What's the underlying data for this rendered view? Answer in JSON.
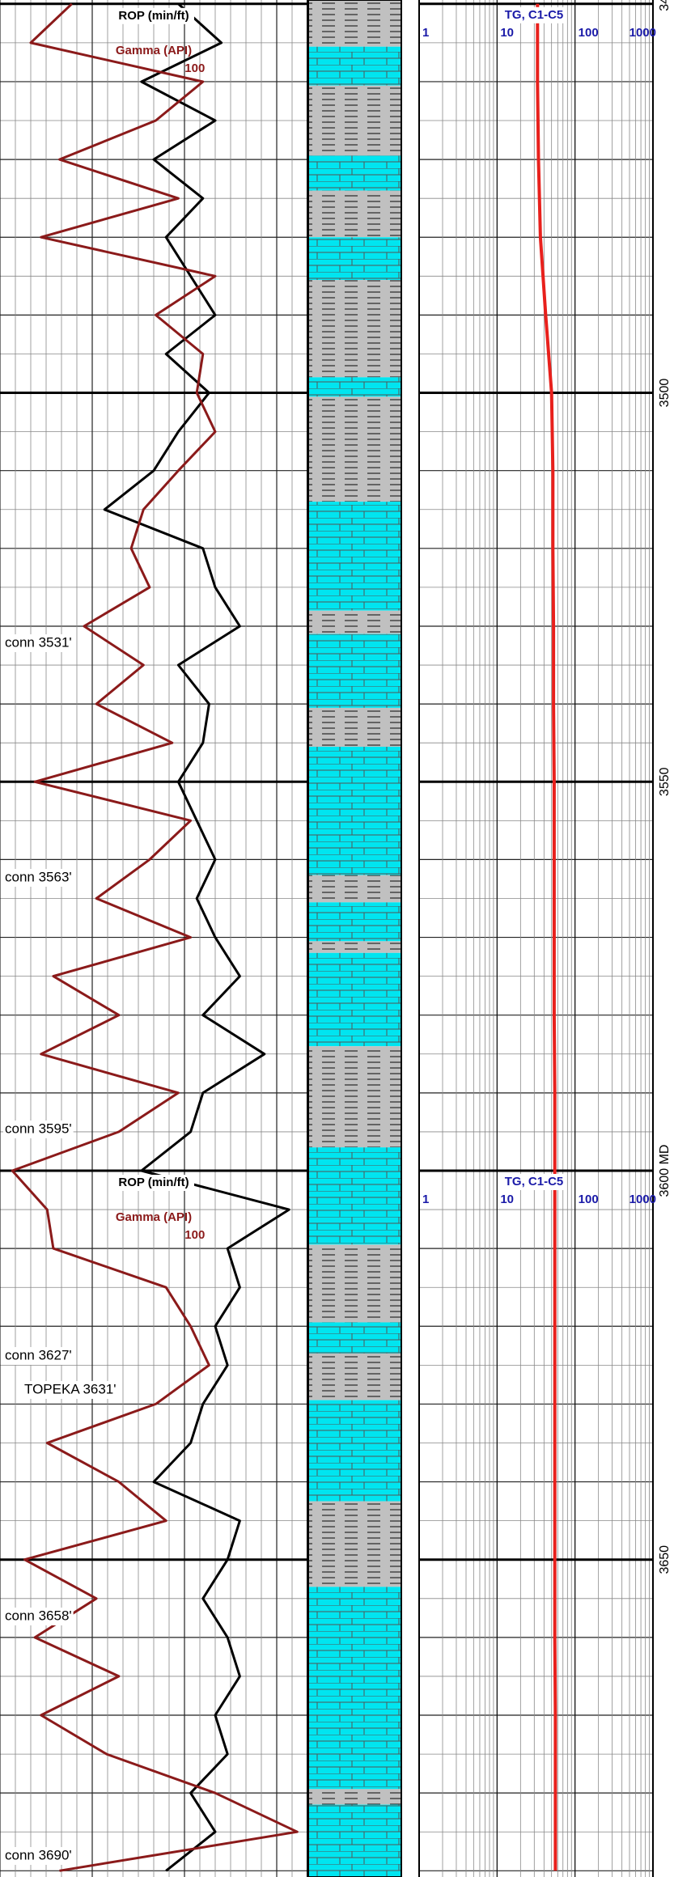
{
  "chart_data": {
    "type": "welllog",
    "ylim": [
      3449.5,
      3690.8
    ],
    "yticks": [
      {
        "value": 3450,
        "label": "34"
      },
      3500,
      3550,
      {
        "value": 3600,
        "label": "3600 MD"
      },
      3650
    ],
    "depths": [
      3450,
      3455,
      3460,
      3465,
      3470,
      3475,
      3480,
      3485,
      3490,
      3495,
      3500,
      3505,
      3510,
      3515,
      3520,
      3525,
      3530,
      3535,
      3540,
      3545,
      3550,
      3555,
      3560,
      3565,
      3570,
      3575,
      3580,
      3585,
      3590,
      3595,
      3600,
      3605,
      3610,
      3615,
      3620,
      3625,
      3630,
      3635,
      3640,
      3645,
      3650,
      3655,
      3660,
      3665,
      3670,
      3675,
      3680,
      3685,
      3690
    ],
    "series": [
      {
        "name": "ROP (min/ft)",
        "color": "#000000",
        "xlim": [
          0,
          5
        ],
        "values": [
          2.9,
          3.6,
          2.3,
          3.5,
          2.5,
          3.3,
          2.7,
          3.1,
          3.5,
          2.7,
          3.4,
          2.9,
          2.5,
          1.7,
          3.3,
          3.5,
          3.9,
          2.9,
          3.4,
          3.3,
          2.9,
          3.2,
          3.5,
          3.2,
          3.5,
          3.9,
          3.3,
          4.3,
          3.3,
          3.1,
          2.3,
          4.7,
          3.7,
          3.9,
          3.5,
          3.7,
          3.3,
          3.1,
          2.5,
          3.9,
          3.7,
          3.3,
          3.7,
          3.9,
          3.5,
          3.7,
          3.1,
          3.5,
          2.7
        ]
      },
      {
        "name": "Gamma (API)",
        "color": "#8b1a1a",
        "xlim": [
          0,
          150
        ],
        "xticks": [
          100
        ],
        "values": [
          35,
          15,
          99,
          76,
          29,
          87,
          20,
          105,
          76,
          99,
          96,
          105,
          87,
          70,
          64,
          73,
          41,
          70,
          47,
          84,
          17,
          93,
          73,
          47,
          93,
          26,
          58,
          20,
          87,
          58,
          6,
          23,
          26,
          81,
          93,
          102,
          76,
          23,
          58,
          81,
          12,
          47,
          17,
          58,
          20,
          52,
          105,
          145,
          29
        ]
      }
    ],
    "gas": {
      "name": "TG, C1-C5",
      "color": "#e8201c",
      "label_color": "#1a1aa8",
      "log": true,
      "xlim": [
        1,
        1000
      ],
      "xticks": [
        1,
        10,
        100,
        1000
      ],
      "depths": [
        3450,
        3460,
        3470,
        3480,
        3490,
        3500,
        3510,
        3520,
        3530,
        3540,
        3550,
        3560,
        3570,
        3580,
        3590,
        3600,
        3610,
        3620,
        3630,
        3640,
        3650,
        3660,
        3670,
        3680,
        3690
      ],
      "values": [
        33,
        33,
        34,
        36,
        42,
        50,
        52,
        52,
        53,
        53,
        54,
        54,
        54,
        54,
        55,
        55,
        55,
        55,
        55,
        55,
        55,
        55,
        56,
        56,
        56
      ]
    },
    "lithology": [
      {
        "top": 3449.5,
        "base": 3455.5,
        "color": "#c0c0c0"
      },
      {
        "top": 3455.5,
        "base": 3460.5,
        "color": "#00e5f0"
      },
      {
        "top": 3460.5,
        "base": 3469.5,
        "color": "#c0c0c0"
      },
      {
        "top": 3469.5,
        "base": 3474,
        "color": "#00e5f0"
      },
      {
        "top": 3474,
        "base": 3480,
        "color": "#c0c0c0"
      },
      {
        "top": 3480,
        "base": 3485.5,
        "color": "#00e5f0"
      },
      {
        "top": 3485.5,
        "base": 3498,
        "color": "#c0c0c0"
      },
      {
        "top": 3498,
        "base": 3500.5,
        "color": "#00e5f0"
      },
      {
        "top": 3500.5,
        "base": 3514,
        "color": "#c0c0c0"
      },
      {
        "top": 3514,
        "base": 3528,
        "color": "#00e5f0"
      },
      {
        "top": 3528,
        "base": 3531,
        "color": "#c0c0c0"
      },
      {
        "top": 3531,
        "base": 3540.5,
        "color": "#00e5f0"
      },
      {
        "top": 3540.5,
        "base": 3545.5,
        "color": "#c0c0c0"
      },
      {
        "top": 3545.5,
        "base": 3562,
        "color": "#00e5f0"
      },
      {
        "top": 3562,
        "base": 3565.5,
        "color": "#c0c0c0"
      },
      {
        "top": 3565.5,
        "base": 3570.5,
        "color": "#00e5f0"
      },
      {
        "top": 3570.5,
        "base": 3572,
        "color": "#c0c0c0"
      },
      {
        "top": 3572,
        "base": 3584,
        "color": "#00e5f0"
      },
      {
        "top": 3584,
        "base": 3597,
        "color": "#c0c0c0"
      },
      {
        "top": 3597,
        "base": 3609.5,
        "color": "#00e5f0"
      },
      {
        "top": 3609.5,
        "base": 3619.5,
        "color": "#c0c0c0"
      },
      {
        "top": 3619.5,
        "base": 3623.5,
        "color": "#00e5f0"
      },
      {
        "top": 3623.5,
        "base": 3629.5,
        "color": "#c0c0c0"
      },
      {
        "top": 3629.5,
        "base": 3642.5,
        "color": "#00e5f0"
      },
      {
        "top": 3642.5,
        "base": 3653.5,
        "color": "#c0c0c0"
      },
      {
        "top": 3653.5,
        "base": 3679.5,
        "color": "#00e5f0"
      },
      {
        "top": 3679.5,
        "base": 3681.5,
        "color": "#c0c0c0"
      },
      {
        "top": 3681.5,
        "base": 3690.8,
        "color": "#00e5f0"
      }
    ],
    "annotations": [
      "conn 3531'",
      "conn 3563'",
      "conn 3595'",
      "conn 3627'",
      "TOPEKA 3631'",
      "conn 3658'",
      "conn 3690'"
    ]
  }
}
